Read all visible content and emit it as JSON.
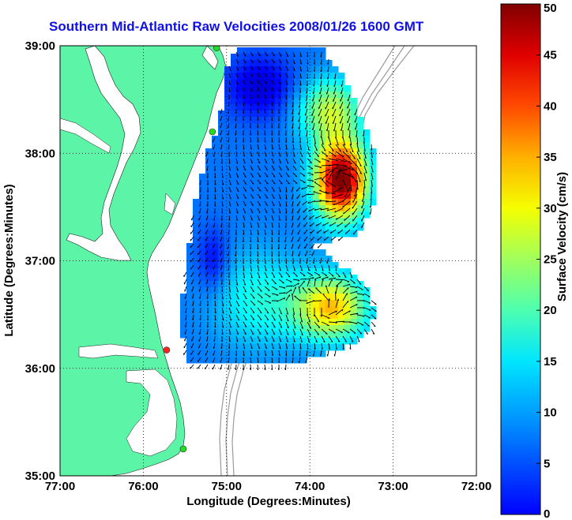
{
  "title": "Southern Mid-Atlantic Raw Velocities 2008/01/26 1600 GMT",
  "map": {
    "xlabel": "Longitude (Degrees:Minutes)",
    "ylabel": "Latitude (Degrees:Minutes)",
    "lon_range": [
      -77,
      -72
    ],
    "lat_range": [
      35,
      39
    ],
    "x_ticks": [
      {
        "lon": -77,
        "label": "77:00"
      },
      {
        "lon": -76,
        "label": "76:00"
      },
      {
        "lon": -75,
        "label": "75:00"
      },
      {
        "lon": -74,
        "label": "74:00"
      },
      {
        "lon": -73,
        "label": "73:00"
      },
      {
        "lon": -72,
        "label": "72:00"
      }
    ],
    "y_ticks": [
      {
        "lat": 39,
        "label": "39:00"
      },
      {
        "lat": 38,
        "label": "38:00"
      },
      {
        "lat": 37,
        "label": "37:00"
      },
      {
        "lat": 36,
        "label": "36:00"
      },
      {
        "lat": 35,
        "label": "35:00"
      }
    ],
    "grid": "dotted",
    "colors": {
      "land": "#5cf5a8",
      "water": "#ffffff",
      "bathymetry": "#9a9a9a",
      "arrows": "#000000",
      "station_active": "#22dd22",
      "station_inactive": "#ff2222"
    },
    "stations": [
      {
        "lon": -75.12,
        "lat": 38.98,
        "status": "active"
      },
      {
        "lon": -75.17,
        "lat": 38.2,
        "status": "active"
      },
      {
        "lon": -75.72,
        "lat": 36.17,
        "status": "inactive"
      },
      {
        "lon": -75.52,
        "lat": 35.25,
        "status": "active"
      }
    ]
  },
  "colorbar": {
    "label": "Surface Velocity (cm/s)",
    "min": 0,
    "max": 50,
    "ticks": [
      "0",
      "5",
      "10",
      "15",
      "20",
      "25",
      "30",
      "35",
      "40",
      "45",
      "50"
    ],
    "colormap": "jet"
  }
}
